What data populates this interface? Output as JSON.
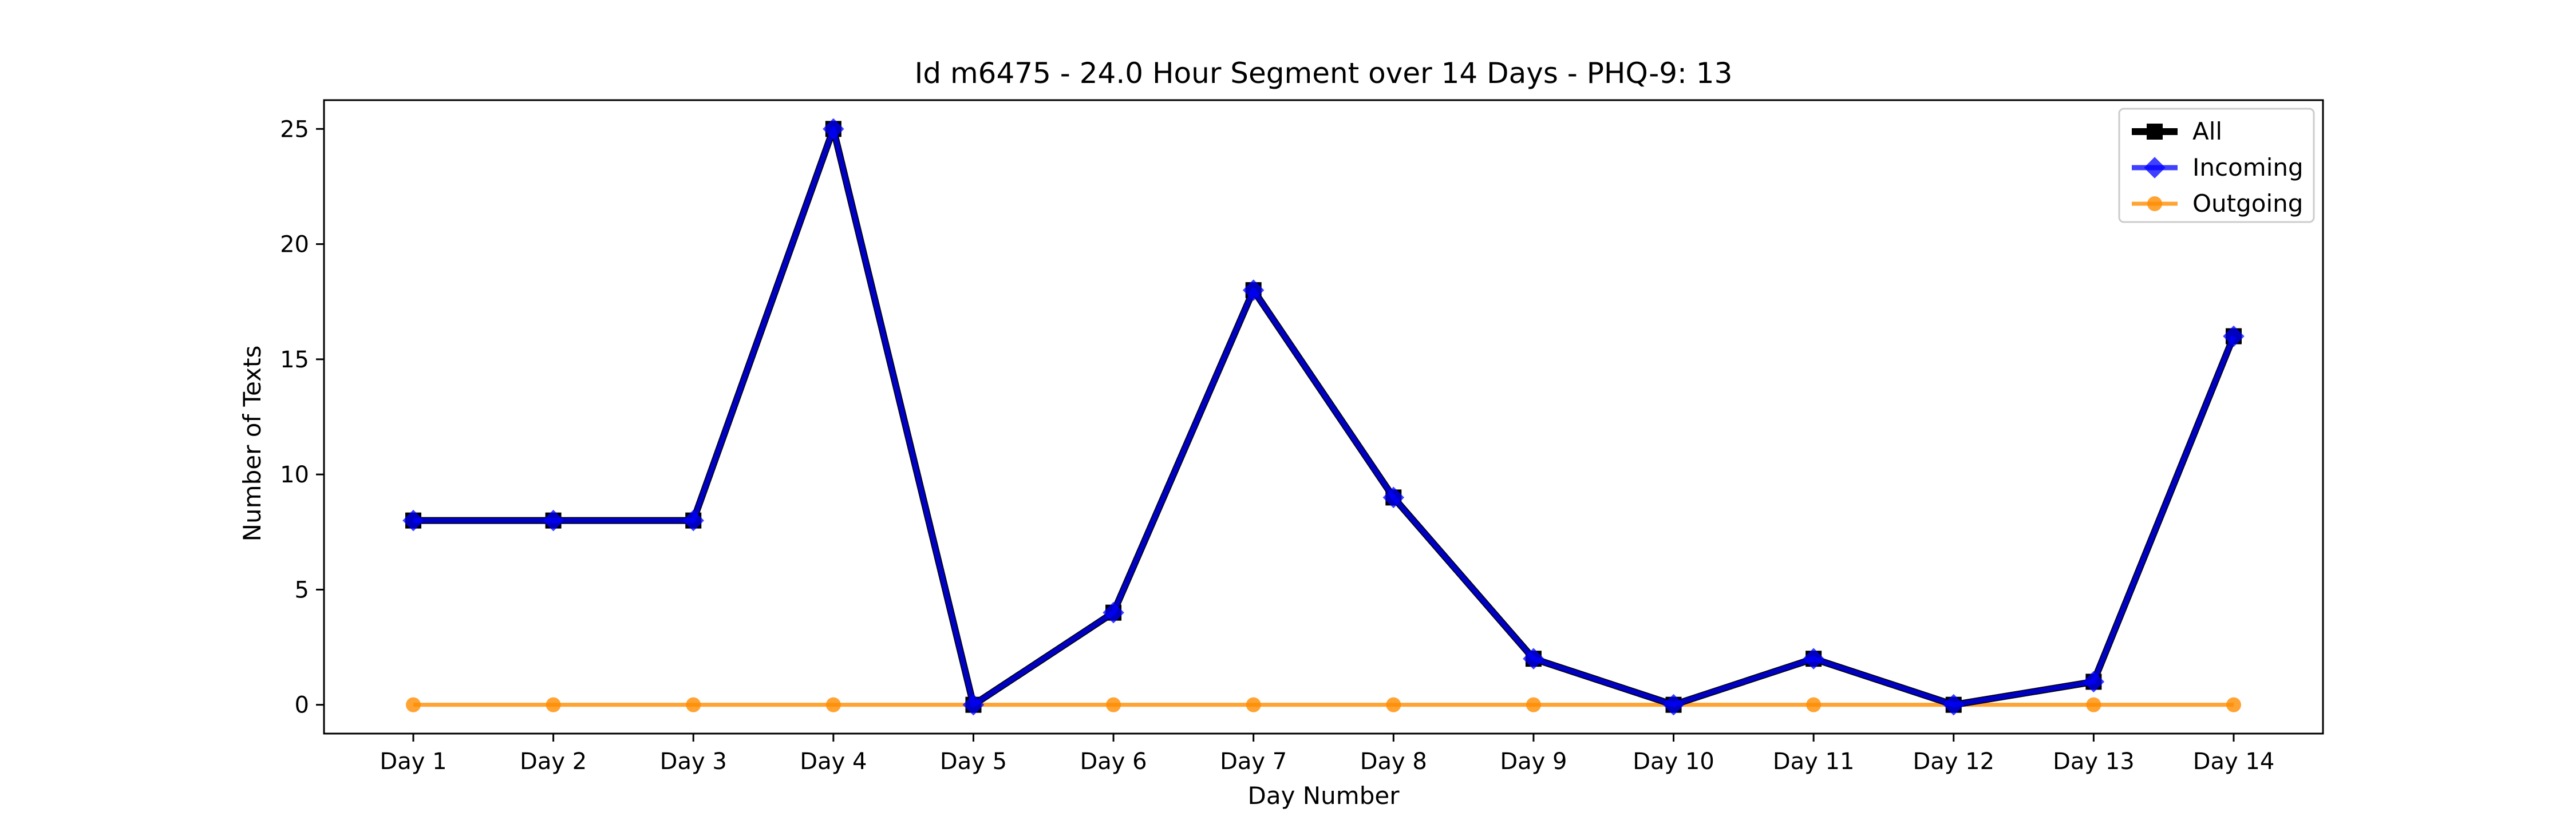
{
  "chart_data": {
    "type": "line",
    "title": "Id m6475 - 24.0 Hour Segment over 14 Days - PHQ-9: 13",
    "xlabel": "Day Number",
    "ylabel": "Number of Texts",
    "categories": [
      "Day 1",
      "Day 2",
      "Day 3",
      "Day 4",
      "Day 5",
      "Day 6",
      "Day 7",
      "Day 8",
      "Day 9",
      "Day 10",
      "Day 11",
      "Day 12",
      "Day 13",
      "Day 14"
    ],
    "yticks": [
      0,
      5,
      10,
      15,
      20,
      25
    ],
    "ylim": [
      -1.25,
      26.25
    ],
    "grid": false,
    "legend_position": "top-right",
    "series": [
      {
        "name": "All",
        "color": "#000000",
        "marker": "square",
        "values": [
          8,
          8,
          8,
          25,
          0,
          4,
          18,
          9,
          2,
          0,
          2,
          0,
          1,
          16
        ]
      },
      {
        "name": "Incoming",
        "color": "#0000ff",
        "marker": "diamond",
        "values": [
          8,
          8,
          8,
          25,
          0,
          4,
          18,
          9,
          2,
          0,
          2,
          0,
          1,
          16
        ]
      },
      {
        "name": "Outgoing",
        "color": "#ff8c00",
        "marker": "circle",
        "values": [
          0,
          0,
          0,
          0,
          0,
          0,
          0,
          0,
          0,
          0,
          0,
          0,
          0,
          0
        ]
      }
    ]
  }
}
